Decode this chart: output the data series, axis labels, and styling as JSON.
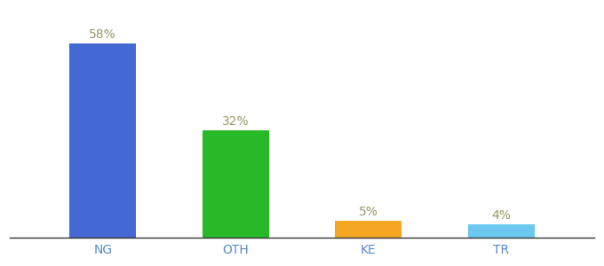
{
  "categories": [
    "NG",
    "OTH",
    "KE",
    "TR"
  ],
  "values": [
    58,
    32,
    5,
    4
  ],
  "labels": [
    "58%",
    "32%",
    "5%",
    "4%"
  ],
  "bar_colors": [
    "#4469d4",
    "#27b927",
    "#f5a623",
    "#6dc8f0"
  ],
  "background_color": "#ffffff",
  "label_fontsize": 10,
  "tick_fontsize": 10,
  "label_color": "#999966",
  "tick_label_color": "#5588cc",
  "ylim": [
    0,
    68
  ],
  "bar_width": 0.5,
  "figsize": [
    6.8,
    3.0
  ],
  "dpi": 100
}
